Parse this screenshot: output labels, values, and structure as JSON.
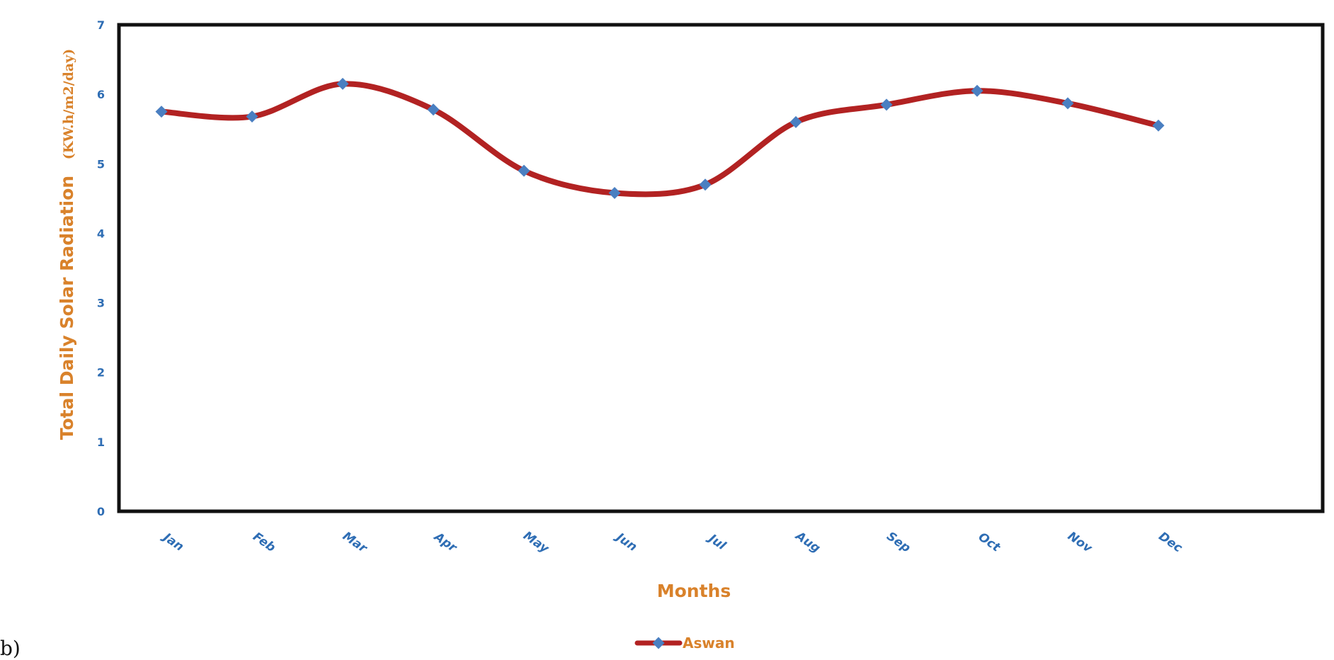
{
  "panel_label": "b)",
  "colors": {
    "line": "#b22222",
    "marker": "#4a7fc1",
    "tick_text": "#2e6db4",
    "axis_title": "#d9822b",
    "frame": "#111111",
    "legend_text": "#d9822b"
  },
  "chart_data": {
    "type": "line",
    "categories": [
      "Jan",
      "Feb",
      "Mar",
      "Apr",
      "May",
      "Jun",
      "Jul",
      "Aug",
      "Sep",
      "Oct",
      "Nov",
      "Dec"
    ],
    "series": [
      {
        "name": "Aswan",
        "values": [
          5.75,
          5.68,
          6.15,
          5.78,
          4.9,
          4.58,
          4.7,
          5.6,
          5.85,
          6.05,
          5.87,
          5.55
        ]
      }
    ],
    "xlabel": "Months",
    "ylabel_main": "Total Daily Solar Radiation",
    "ylabel_unit": "(KW.h/m2/day)",
    "ylim": [
      0,
      7
    ],
    "yticks": [
      0,
      1,
      2,
      3,
      4,
      5,
      6,
      7
    ],
    "grid": false,
    "legend_position": "bottom-center"
  }
}
